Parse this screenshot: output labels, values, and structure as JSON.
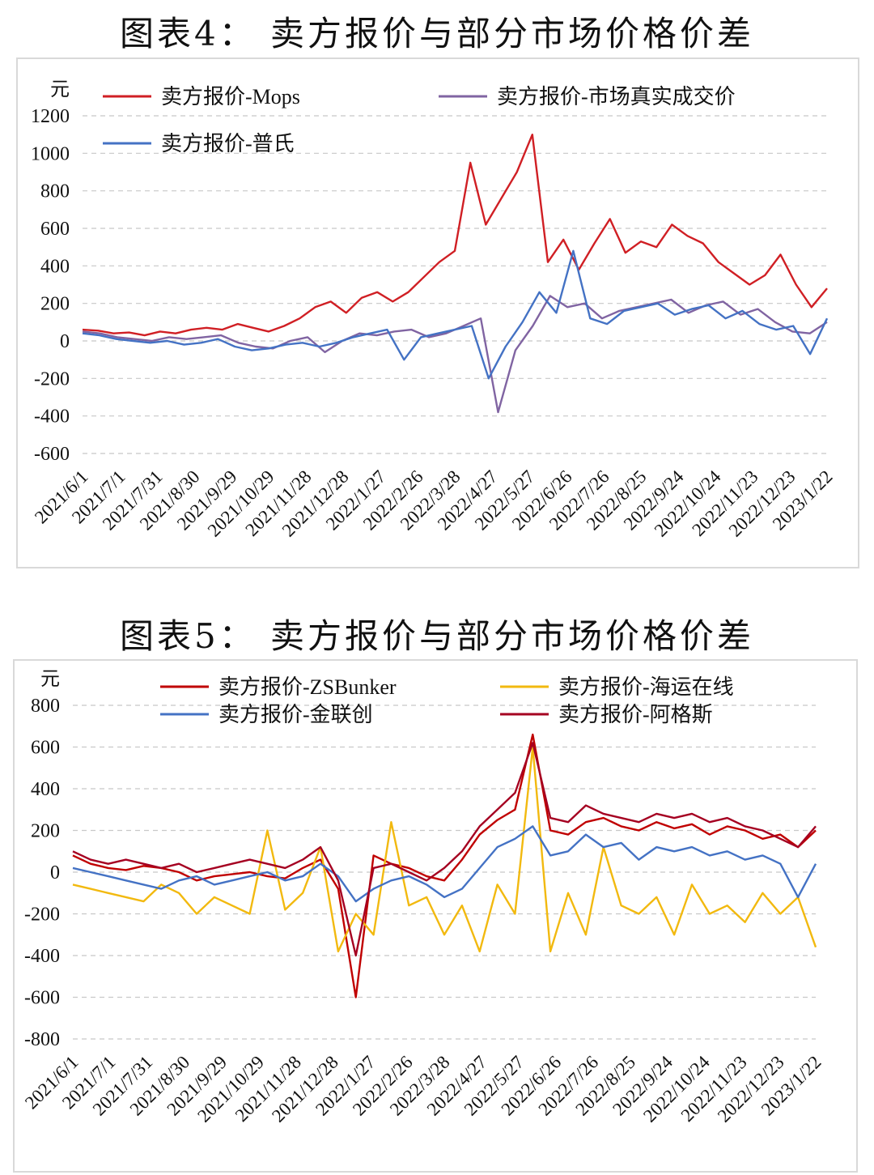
{
  "chart_data": [
    {
      "type": "line",
      "title": "图表4： 卖方报价与部分市场价格价差",
      "ylabel": "元",
      "ylim": [
        -600,
        1200
      ],
      "yticks": [
        "1200",
        "1000",
        "800",
        "600",
        "400",
        "200",
        "0",
        "-200",
        "-400",
        "-600"
      ],
      "xticks": [
        "2021/6/1",
        "2021/7/1",
        "2021/7/31",
        "2021/8/30",
        "2021/9/29",
        "2021/10/29",
        "2021/11/28",
        "2021/12/28",
        "2022/1/27",
        "2022/2/26",
        "2022/3/28",
        "2022/4/27",
        "2022/5/27",
        "2022/6/26",
        "2022/7/26",
        "2022/8/25",
        "2022/9/24",
        "2022/10/24",
        "2022/11/23",
        "2022/12/23",
        "2023/1/22"
      ],
      "grid": "horizontal dashed",
      "legend_position": "top",
      "series": [
        {
          "name": "卖方报价-Mops",
          "color": "#d01f24",
          "values": [
            60,
            55,
            40,
            45,
            30,
            50,
            40,
            60,
            70,
            60,
            90,
            70,
            50,
            80,
            120,
            180,
            210,
            150,
            230,
            260,
            210,
            260,
            340,
            420,
            480,
            950,
            620,
            760,
            900,
            1100,
            420,
            540,
            380,
            520,
            650,
            470,
            530,
            500,
            620,
            560,
            520,
            420,
            360,
            300,
            350,
            460,
            300,
            180,
            280
          ]
        },
        {
          "name": "卖方报价-市场真实成交价",
          "color": "#8064a2",
          "values": [
            50,
            40,
            20,
            10,
            0,
            20,
            10,
            20,
            30,
            -10,
            -30,
            -40,
            0,
            20,
            -60,
            0,
            40,
            30,
            50,
            60,
            20,
            40,
            80,
            120,
            -380,
            -50,
            80,
            240,
            180,
            200,
            120,
            160,
            180,
            200,
            220,
            150,
            190,
            210,
            140,
            170,
            100,
            50,
            40,
            100
          ]
        },
        {
          "name": "卖方报价-普氏",
          "color": "#4472c4",
          "values": [
            40,
            30,
            10,
            0,
            -10,
            0,
            -20,
            -10,
            10,
            -30,
            -50,
            -40,
            -20,
            -10,
            -30,
            -10,
            20,
            40,
            60,
            -100,
            20,
            40,
            60,
            80,
            -200,
            -30,
            100,
            260,
            150,
            480,
            120,
            90,
            160,
            180,
            200,
            140,
            170,
            190,
            120,
            160,
            90,
            60,
            80,
            -70,
            120
          ]
        }
      ]
    },
    {
      "type": "line",
      "title": "图表5： 卖方报价与部分市场价格价差",
      "ylabel": "元",
      "ylim": [
        -800,
        800
      ],
      "yticks": [
        "800",
        "600",
        "400",
        "200",
        "0",
        "-200",
        "-400",
        "-600",
        "-800"
      ],
      "xticks": [
        "2021/6/1",
        "2021/7/1",
        "2021/7/31",
        "2021/8/30",
        "2021/9/29",
        "2021/10/29",
        "2021/11/28",
        "2021/12/28",
        "2022/1/27",
        "2022/2/26",
        "2022/3/28",
        "2022/4/27",
        "2022/5/27",
        "2022/6/26",
        "2022/7/26",
        "2022/8/25",
        "2022/9/24",
        "2022/10/24",
        "2022/11/23",
        "2022/12/23",
        "2023/1/22"
      ],
      "grid": "horizontal dashed",
      "legend_position": "top",
      "series": [
        {
          "name": "卖方报价-ZSBunker",
          "color": "#c00000",
          "values": [
            80,
            40,
            20,
            10,
            30,
            20,
            0,
            -40,
            -20,
            -10,
            0,
            -20,
            -30,
            20,
            60,
            -80,
            -600,
            80,
            40,
            20,
            -20,
            -40,
            60,
            180,
            250,
            300,
            660,
            200,
            180,
            240,
            260,
            220,
            200,
            240,
            210,
            230,
            180,
            220,
            200,
            160,
            180,
            120,
            200
          ]
        },
        {
          "name": "卖方报价-海运在线",
          "color": "#f2b90f",
          "values": [
            -60,
            -80,
            -100,
            -120,
            -140,
            -60,
            -100,
            -200,
            -120,
            -160,
            -200,
            200,
            -180,
            -100,
            120,
            -380,
            -200,
            -300,
            240,
            -160,
            -120,
            -300,
            -160,
            -380,
            -60,
            -200,
            600,
            -380,
            -100,
            -300,
            120,
            -160,
            -200,
            -120,
            -300,
            -60,
            -200,
            -160,
            -240,
            -100,
            -200,
            -120,
            -360
          ]
        },
        {
          "name": "卖方报价-金联创",
          "color": "#4472c4",
          "values": [
            20,
            0,
            -20,
            -40,
            -60,
            -80,
            -40,
            -20,
            -60,
            -40,
            -20,
            0,
            -40,
            -20,
            40,
            -20,
            -140,
            -80,
            -40,
            -20,
            -60,
            -120,
            -80,
            20,
            120,
            160,
            220,
            80,
            100,
            180,
            120,
            140,
            60,
            120,
            100,
            120,
            80,
            100,
            60,
            80,
            40,
            -120,
            40
          ]
        },
        {
          "name": "卖方报价-阿格斯",
          "color": "#a50021",
          "values": [
            100,
            60,
            40,
            60,
            40,
            20,
            40,
            0,
            20,
            40,
            60,
            40,
            20,
            60,
            120,
            -40,
            -400,
            20,
            40,
            0,
            -40,
            20,
            100,
            220,
            300,
            380,
            620,
            260,
            240,
            320,
            280,
            260,
            240,
            280,
            260,
            280,
            240,
            260,
            220,
            200,
            160,
            120,
            220
          ]
        }
      ]
    }
  ]
}
